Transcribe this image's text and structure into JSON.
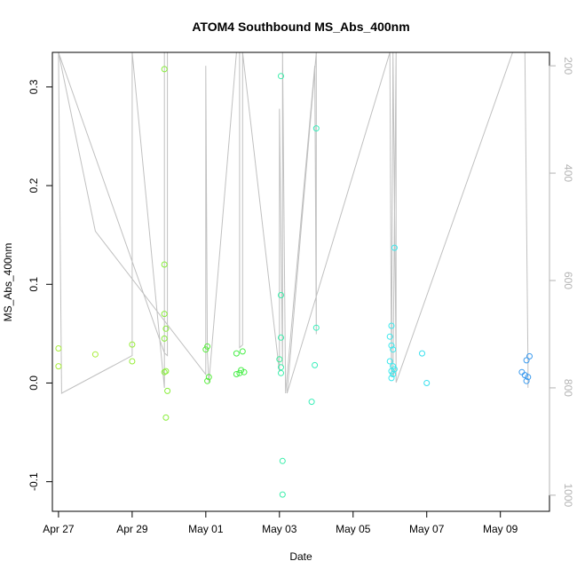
{
  "chart_data": {
    "type": "scatter",
    "title": "ATOM4 Southbound MS_Abs_400nm",
    "xlabel": "Date",
    "ylabel": "MS_Abs_400nm",
    "xlim": [
      "2018-04-26T20:00",
      "2018-05-10T08:00"
    ],
    "ylim": [
      -0.13,
      0.335
    ],
    "x_ticks": [
      "Apr 27",
      "Apr 29",
      "May 01",
      "May 03",
      "May 05",
      "May 07",
      "May 09"
    ],
    "x_tick_dates": [
      "2018-04-27",
      "2018-04-29",
      "2018-05-01",
      "2018-05-03",
      "2018-05-05",
      "2018-05-07",
      "2018-05-09"
    ],
    "y_ticks": [
      -0.1,
      0.0,
      0.1,
      0.2,
      0.3
    ],
    "y_tick_labels": [
      "-0.1",
      "0.0",
      "0.1",
      "0.2",
      "0.3"
    ],
    "secondary_axis": {
      "label": "",
      "reversed": true,
      "ylim": [
        175,
        1030
      ],
      "ticks": [
        200,
        400,
        600,
        800,
        1000
      ],
      "tick_labels": [
        "200",
        "400",
        "600",
        "800",
        "1000"
      ],
      "color": "#b3b3b3"
    },
    "points": [
      {
        "x": "2018-04-27T00:00",
        "y": 0.035,
        "color": "#a8ee3a"
      },
      {
        "x": "2018-04-27T00:00",
        "y": 0.017,
        "color": "#a8ee3a"
      },
      {
        "x": "2018-04-28T00:00",
        "y": 0.029,
        "color": "#a8ee3a"
      },
      {
        "x": "2018-04-29T00:00",
        "y": 0.039,
        "color": "#98ee3a"
      },
      {
        "x": "2018-04-29T00:00",
        "y": 0.022,
        "color": "#98ee3a"
      },
      {
        "x": "2018-04-29T21:00",
        "y": 0.318,
        "color": "#88ee3a"
      },
      {
        "x": "2018-04-29T21:00",
        "y": 0.12,
        "color": "#88ee3a"
      },
      {
        "x": "2018-04-29T21:00",
        "y": 0.07,
        "color": "#88ee3a"
      },
      {
        "x": "2018-04-29T22:00",
        "y": 0.055,
        "color": "#88ee3a"
      },
      {
        "x": "2018-04-29T21:00",
        "y": 0.045,
        "color": "#88ee3a"
      },
      {
        "x": "2018-04-29T21:00",
        "y": 0.011,
        "color": "#88ee3a"
      },
      {
        "x": "2018-04-29T22:00",
        "y": 0.012,
        "color": "#88ee3a"
      },
      {
        "x": "2018-04-29T23:00",
        "y": -0.008,
        "color": "#88ee3a"
      },
      {
        "x": "2018-04-29T22:00",
        "y": -0.035,
        "color": "#88ee3a"
      },
      {
        "x": "2018-05-01T00:00",
        "y": 0.034,
        "color": "#55ee3a"
      },
      {
        "x": "2018-05-01T01:00",
        "y": 0.037,
        "color": "#55ee3a"
      },
      {
        "x": "2018-05-01T02:00",
        "y": 0.006,
        "color": "#55ee3a"
      },
      {
        "x": "2018-05-01T01:00",
        "y": 0.002,
        "color": "#55ee3a"
      },
      {
        "x": "2018-05-01T20:00",
        "y": 0.03,
        "color": "#48ee48"
      },
      {
        "x": "2018-05-02T00:00",
        "y": 0.032,
        "color": "#48ee48"
      },
      {
        "x": "2018-05-01T23:00",
        "y": 0.013,
        "color": "#48ee48"
      },
      {
        "x": "2018-05-01T20:00",
        "y": 0.009,
        "color": "#48ee48"
      },
      {
        "x": "2018-05-01T22:00",
        "y": 0.01,
        "color": "#48ee48"
      },
      {
        "x": "2018-05-02T01:00",
        "y": 0.011,
        "color": "#48ee48"
      },
      {
        "x": "2018-05-03T00:00",
        "y": 0.024,
        "color": "#3aee9a"
      },
      {
        "x": "2018-05-03T01:00",
        "y": 0.311,
        "color": "#3aeeaa"
      },
      {
        "x": "2018-05-03T01:00",
        "y": 0.089,
        "color": "#3aeeaa"
      },
      {
        "x": "2018-05-03T01:00",
        "y": 0.046,
        "color": "#3aeeaa"
      },
      {
        "x": "2018-05-03T01:00",
        "y": 0.016,
        "color": "#3aeeaa"
      },
      {
        "x": "2018-05-03T01:00",
        "y": 0.01,
        "color": "#3aeeaa"
      },
      {
        "x": "2018-05-03T02:00",
        "y": -0.079,
        "color": "#3aeeaa"
      },
      {
        "x": "2018-05-03T02:00",
        "y": -0.113,
        "color": "#3aeeaa"
      },
      {
        "x": "2018-05-03T21:00",
        "y": -0.019,
        "color": "#3aeeb8"
      },
      {
        "x": "2018-05-04T00:00",
        "y": 0.258,
        "color": "#3aeebb"
      },
      {
        "x": "2018-05-04T00:00",
        "y": 0.056,
        "color": "#3aeebb"
      },
      {
        "x": "2018-05-03T23:00",
        "y": 0.018,
        "color": "#3aeebb"
      },
      {
        "x": "2018-05-06T00:00",
        "y": 0.047,
        "color": "#3ae8ee"
      },
      {
        "x": "2018-05-06T01:00",
        "y": 0.058,
        "color": "#3ae8ee"
      },
      {
        "x": "2018-05-06T02:00",
        "y": 0.034,
        "color": "#3ae8ee"
      },
      {
        "x": "2018-05-06T01:00",
        "y": 0.038,
        "color": "#3ae8ee"
      },
      {
        "x": "2018-05-06T00:00",
        "y": 0.022,
        "color": "#3ae8ee"
      },
      {
        "x": "2018-05-06T02:00",
        "y": 0.017,
        "color": "#3ae8ee"
      },
      {
        "x": "2018-05-06T01:00",
        "y": 0.012,
        "color": "#3ae8ee"
      },
      {
        "x": "2018-05-06T03:00",
        "y": 0.014,
        "color": "#3ae8ee"
      },
      {
        "x": "2018-05-06T02:00",
        "y": 0.009,
        "color": "#3ae8ee"
      },
      {
        "x": "2018-05-06T01:00",
        "y": 0.005,
        "color": "#3ae8ee"
      },
      {
        "x": "2018-05-06T03:00",
        "y": 0.137,
        "color": "#3ae8ee"
      },
      {
        "x": "2018-05-06T21:00",
        "y": 0.03,
        "color": "#3ae0ee"
      },
      {
        "x": "2018-05-07T00:00",
        "y": 0.0,
        "color": "#3ae0ee"
      },
      {
        "x": "2018-05-09T14:00",
        "y": 0.011,
        "color": "#3a9aee"
      },
      {
        "x": "2018-05-09T16:00",
        "y": 0.008,
        "color": "#3a9aee"
      },
      {
        "x": "2018-05-09T18:00",
        "y": 0.006,
        "color": "#3a9aee"
      },
      {
        "x": "2018-05-09T17:00",
        "y": 0.002,
        "color": "#3a9aee"
      },
      {
        "x": "2018-05-09T17:00",
        "y": 0.023,
        "color": "#3a9aee"
      },
      {
        "x": "2018-05-09T19:00",
        "y": 0.027,
        "color": "#3a9aee"
      }
    ],
    "track": {
      "color": "#c0c0c0",
      "axis": "secondary",
      "points": [
        [
          "2018-04-27T00:00",
          175
        ],
        [
          "2018-04-27T02:00",
          810
        ],
        [
          "2018-04-29T00:00",
          740
        ],
        [
          "2018-04-29T00:00",
          175
        ],
        [
          "2018-04-29T21:00",
          800
        ],
        [
          "2018-04-29T21:00",
          175
        ],
        [
          "2018-04-29T23:00",
          175
        ],
        [
          "2018-04-29T23:00",
          740
        ],
        [
          "2018-04-29T21:00",
          735
        ],
        [
          "2018-04-27T00:00",
          175
        ],
        [
          "2018-04-28T00:00",
          508
        ],
        [
          "2018-05-01T00:00",
          775
        ],
        [
          "2018-05-01T00:00",
          200
        ],
        [
          "2018-05-01T01:00",
          735
        ],
        [
          "2018-05-01T02:00",
          790
        ],
        [
          "2018-05-01T20:00",
          175
        ],
        [
          "2018-05-01T22:00",
          175
        ],
        [
          "2018-05-01T22:00",
          725
        ],
        [
          "2018-05-02T00:00",
          720
        ],
        [
          "2018-05-02T00:00",
          175
        ],
        [
          "2018-05-03T00:00",
          770
        ],
        [
          "2018-05-03T00:00",
          280
        ],
        [
          "2018-05-03T02:00",
          760
        ],
        [
          "2018-05-03T02:00",
          175
        ],
        [
          "2018-05-03T04:00",
          810
        ],
        [
          "2018-05-03T23:00",
          200
        ],
        [
          "2018-05-04T00:00",
          700
        ],
        [
          "2018-05-04T00:00",
          175
        ],
        [
          "2018-05-03T05:00",
          810
        ],
        [
          "2018-05-06T00:00",
          175
        ],
        [
          "2018-05-06T01:00",
          780
        ],
        [
          "2018-05-06T02:00",
          175
        ],
        [
          "2018-05-06T04:00",
          760
        ],
        [
          "2018-05-06T02:00",
          780
        ],
        [
          "2018-05-06T04:00",
          175
        ],
        [
          "2018-05-06T04:00",
          790
        ],
        [
          "2018-05-09T08:00",
          175
        ],
        [
          "2018-05-09T16:00",
          175
        ],
        [
          "2018-05-09T18:00",
          760
        ],
        [
          "2018-05-09T18:00",
          800
        ]
      ]
    }
  }
}
